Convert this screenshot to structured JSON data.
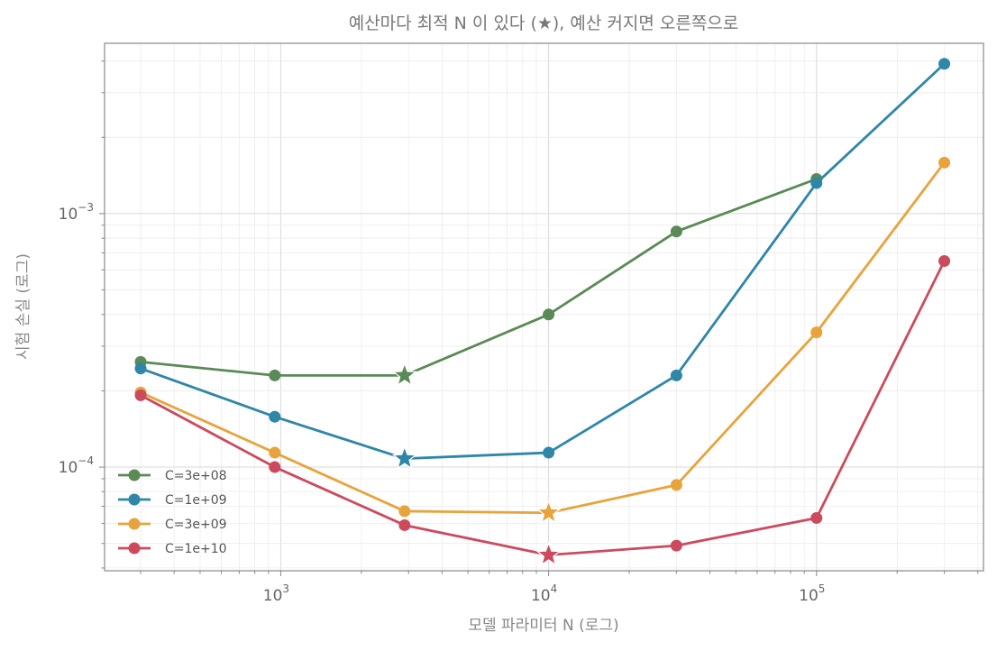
{
  "chart_data": {
    "type": "line",
    "title": "예산마다 최적 N 이 있다 (★), 예산 커지면 오른쪽으로",
    "xlabel": "모델 파라미터 N (로그)",
    "ylabel": "시험 손실 (로그)",
    "xscale": "log",
    "yscale": "log",
    "xlim": [
      220,
      420000
    ],
    "ylim": [
      3.9e-05,
      0.0047
    ],
    "xticks": [
      {
        "base": "10",
        "exp": "3",
        "value": 1000
      },
      {
        "base": "10",
        "exp": "4",
        "value": 10000
      },
      {
        "base": "10",
        "exp": "5",
        "value": 100000
      }
    ],
    "yticks": [
      {
        "base": "10",
        "exp": "−4",
        "value": 0.0001
      },
      {
        "base": "10",
        "exp": "−3",
        "value": 0.001
      }
    ],
    "grid": true,
    "legend_position": "lower-left",
    "x": [
      300,
      950,
      2900,
      10000,
      30000,
      100000,
      300000
    ],
    "series": [
      {
        "name": "C=3e+08",
        "color": "#5a8a55",
        "values": [
          0.00026,
          0.00023,
          0.00023,
          0.0004,
          0.00085,
          0.00137,
          null
        ],
        "optimum": {
          "x": 2900,
          "y": 0.00023
        }
      },
      {
        "name": "C=1e+09",
        "color": "#2e86a8",
        "values": [
          0.000245,
          0.000158,
          0.000108,
          0.000114,
          0.00023,
          0.00132,
          0.0039
        ],
        "optimum": {
          "x": 2900,
          "y": 0.000108
        }
      },
      {
        "name": "C=3e+09",
        "color": "#e8a33c",
        "values": [
          0.000197,
          0.000114,
          6.7e-05,
          6.6e-05,
          8.5e-05,
          0.00034,
          0.00159
        ],
        "optimum": {
          "x": 10000,
          "y": 6.6e-05
        }
      },
      {
        "name": "C=1e+10",
        "color": "#cc4a5e",
        "values": [
          0.000192,
          0.0001,
          5.9e-05,
          4.5e-05,
          4.9e-05,
          6.3e-05,
          0.00065
        ],
        "optimum": {
          "x": 10000,
          "y": 4.5e-05
        }
      }
    ]
  }
}
